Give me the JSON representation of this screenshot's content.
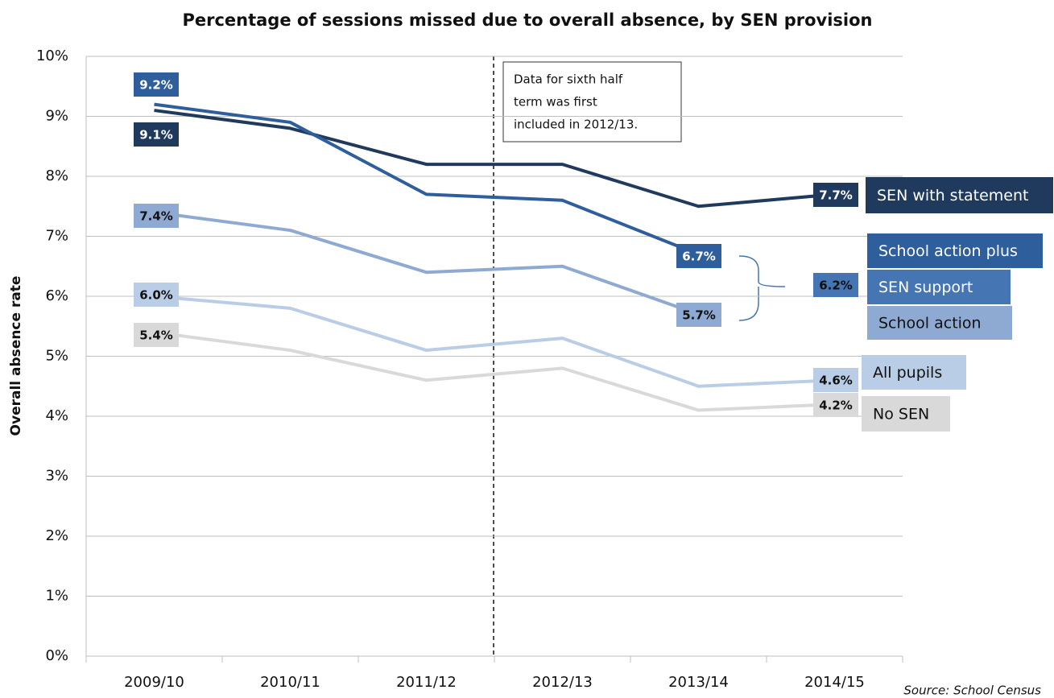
{
  "chart_data": {
    "type": "line",
    "title": "Percentage of sessions missed due to overall absence, by SEN provision",
    "y_label": "Overall absence rate",
    "source": "Source: School Census",
    "annotation": [
      "Data for sixth half",
      "term was first",
      "included in 2012/13."
    ],
    "categories": [
      "2009/10",
      "2010/11",
      "2011/12",
      "2012/13",
      "2013/14",
      "2014/15"
    ],
    "ylim": [
      0,
      10
    ],
    "yticks": [
      {
        "value": 0,
        "label": "0%"
      },
      {
        "value": 1,
        "label": "1%"
      },
      {
        "value": 2,
        "label": "2%"
      },
      {
        "value": 3,
        "label": "3%"
      },
      {
        "value": 4,
        "label": "4%"
      },
      {
        "value": 5,
        "label": "5%"
      },
      {
        "value": 6,
        "label": "6%"
      },
      {
        "value": 7,
        "label": "7%"
      },
      {
        "value": 8,
        "label": "8%"
      },
      {
        "value": 9,
        "label": "9%"
      },
      {
        "value": 10,
        "label": "10%"
      }
    ],
    "grid": true,
    "series": [
      {
        "name": "SEN with statement",
        "color": "#203a5e",
        "values": [
          9.1,
          8.8,
          8.2,
          8.2,
          7.5,
          7.7
        ],
        "value_labels": [
          "9.1%",
          null,
          null,
          null,
          null,
          "7.7%"
        ]
      },
      {
        "name": "School action plus",
        "color": "#2f5e9c",
        "values": [
          9.2,
          8.9,
          7.7,
          7.6,
          6.7,
          null
        ],
        "value_labels": [
          "9.2%",
          null,
          null,
          null,
          "6.7%",
          null
        ]
      },
      {
        "name": "SEN support",
        "color": "#4675b3",
        "values": [
          null,
          null,
          null,
          null,
          null,
          6.2
        ],
        "value_labels": [
          null,
          null,
          null,
          null,
          null,
          "6.2%"
        ]
      },
      {
        "name": "School action",
        "color": "#8eaad2",
        "values": [
          7.4,
          7.1,
          6.4,
          6.5,
          5.7,
          null
        ],
        "value_labels": [
          "7.4%",
          null,
          null,
          null,
          "5.7%",
          null
        ]
      },
      {
        "name": "All pupils",
        "color": "#b9cde6",
        "values": [
          6.0,
          5.8,
          5.1,
          5.3,
          4.5,
          4.6
        ],
        "value_labels": [
          "6.0%",
          null,
          null,
          null,
          null,
          "4.6%"
        ]
      },
      {
        "name": "No SEN",
        "color": "#d9d9d9",
        "values": [
          5.4,
          5.1,
          4.6,
          4.8,
          4.1,
          4.2
        ],
        "value_labels": [
          "5.4%",
          null,
          null,
          null,
          null,
          "4.2%"
        ]
      }
    ]
  }
}
